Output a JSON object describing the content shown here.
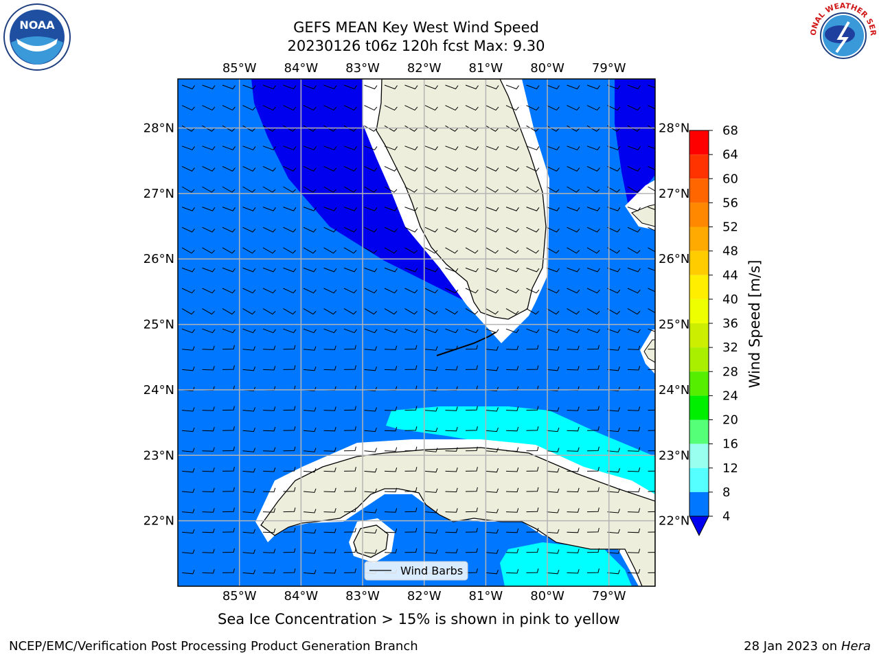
{
  "title": {
    "line1": "GEFS MEAN Key West Wind Speed",
    "line2": "20230126 t06z 120h fcst   Max: 9.30"
  },
  "map": {
    "lon_labels": [
      "85°W",
      "84°W",
      "83°W",
      "82°W",
      "81°W",
      "80°W",
      "79°W"
    ],
    "lat_labels": [
      "28°N",
      "27°N",
      "26°N",
      "25°N",
      "24°N",
      "23°N",
      "22°N"
    ],
    "lon_values": [
      -85,
      -84,
      -83,
      -82,
      -81,
      -80,
      -79
    ],
    "lat_values": [
      28,
      27,
      26,
      25,
      24,
      23,
      22
    ],
    "extent": {
      "lon_min": -86.0,
      "lon_max": -78.25,
      "lat_min": 21.0,
      "lat_max": 28.75
    },
    "legend_label": "Wind Barbs",
    "land_color": "#eeeedc",
    "grid_color": "#b4b4b4"
  },
  "colorbar": {
    "label": "Wind Speed [m/s]",
    "ticks": [
      "68",
      "64",
      "60",
      "56",
      "52",
      "48",
      "44",
      "40",
      "36",
      "32",
      "28",
      "24",
      "20",
      "16",
      "12",
      "8",
      "4"
    ],
    "tick_values": [
      68,
      64,
      60,
      56,
      52,
      48,
      44,
      40,
      36,
      32,
      28,
      24,
      20,
      16,
      12,
      8,
      4
    ],
    "colors": [
      "#ff0000",
      "#ff3300",
      "#ff6600",
      "#ff8800",
      "#ffaa00",
      "#ffcc00",
      "#ffee00",
      "#eeff00",
      "#ccee00",
      "#aaee00",
      "#55ee00",
      "#00ee00",
      "#55ff77",
      "#99ffee",
      "#55ffff",
      "#00ffff",
      "#0077ff"
    ],
    "extend_color": "#0000ee"
  },
  "field_colors": {
    "low": "#0000ee",
    "mid": "#0077ff",
    "high": "#00ffff"
  },
  "logos": {
    "left": "noaa-logo",
    "right": "national-weather-service-logo",
    "left_text": "NOAA",
    "right_text": "NATIONAL WEATHER SERVICE"
  },
  "sea_ice_note": "Sea Ice Concentration > 15% is shown in pink to yellow",
  "footer": {
    "left": "NCEP/EMC/Verification Post Processing Product Generation Branch",
    "right_date": "28 Jan 2023 on ",
    "right_host": "Hera"
  }
}
